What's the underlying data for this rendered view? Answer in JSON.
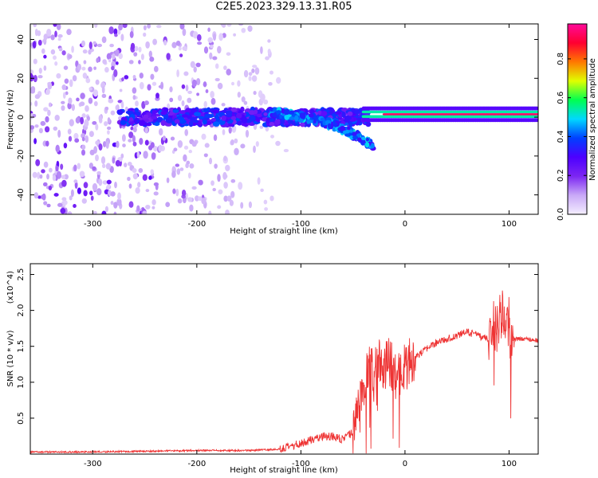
{
  "title": "C2E5.2023.329.13.31.R05",
  "chart_data": [
    {
      "type": "heatmap",
      "title": "",
      "xlabel": "Height of straight line (km)",
      "ylabel": "Frequency (Hz)",
      "xlim": [
        -360,
        128
      ],
      "ylim": [
        -50,
        48
      ],
      "xticks": [
        -300,
        -200,
        -100,
        0,
        100
      ],
      "yticks": [
        -40,
        -20,
        0,
        20,
        40
      ],
      "colorbar": {
        "label": "Normalized spectral amplitude",
        "range": [
          0,
          0.98
        ],
        "ticks": [
          0.0,
          0.2,
          0.4,
          0.6,
          0.8
        ],
        "colors": [
          "#f4eeff",
          "#c9a9f7",
          "#7c26f2",
          "#4d00ff",
          "#0040ff",
          "#00d8ff",
          "#00ff50",
          "#e0ff00",
          "#ff7800",
          "#ff0030",
          "#ff0a9a"
        ]
      },
      "features": {
        "central_band_freq": 0,
        "strong_line": {
          "x": [
            -40,
            128
          ],
          "freq": 1.5,
          "amplitude": 0.95
        },
        "noise_region_x": [
          -360,
          -120
        ],
        "descending_tail": {
          "x": [
            -130,
            -30
          ],
          "freq": [
            2,
            -15
          ]
        }
      }
    },
    {
      "type": "line",
      "title": "",
      "xlabel": "Height of straight line (km)",
      "ylabel": "SNR (10 * v/v)",
      "yscale_label": "(x10^4)",
      "xlim": [
        -360,
        128
      ],
      "ylim": [
        0,
        2.65
      ],
      "xticks": [
        -300,
        -200,
        -100,
        0,
        100
      ],
      "yticks": [
        0.5,
        1.0,
        1.5,
        2.0,
        2.5
      ],
      "color": "#ee3333",
      "series": [
        {
          "x": [
            -360,
            -300,
            -250,
            -200,
            -150,
            -120,
            -110,
            -100,
            -90,
            -80,
            -70,
            -60,
            -50,
            -45,
            -40,
            -35,
            -30,
            -25,
            -20,
            -15,
            -10,
            -5,
            0,
            5,
            10,
            15,
            20,
            25,
            30,
            40,
            50,
            60,
            70,
            80,
            85,
            90,
            95,
            100,
            105,
            110,
            120,
            128
          ],
          "values": [
            0.03,
            0.03,
            0.04,
            0.05,
            0.05,
            0.07,
            0.1,
            0.15,
            0.2,
            0.25,
            0.25,
            0.2,
            0.3,
            0.6,
            0.8,
            1.2,
            1.1,
            1.4,
            1.2,
            1.3,
            1.1,
            1.1,
            1.2,
            1.3,
            1.35,
            1.4,
            1.45,
            1.5,
            1.55,
            1.6,
            1.65,
            1.7,
            1.65,
            1.6,
            1.65,
            1.8,
            2.0,
            1.6,
            1.6,
            1.6,
            1.6,
            1.58
          ]
        }
      ]
    }
  ]
}
